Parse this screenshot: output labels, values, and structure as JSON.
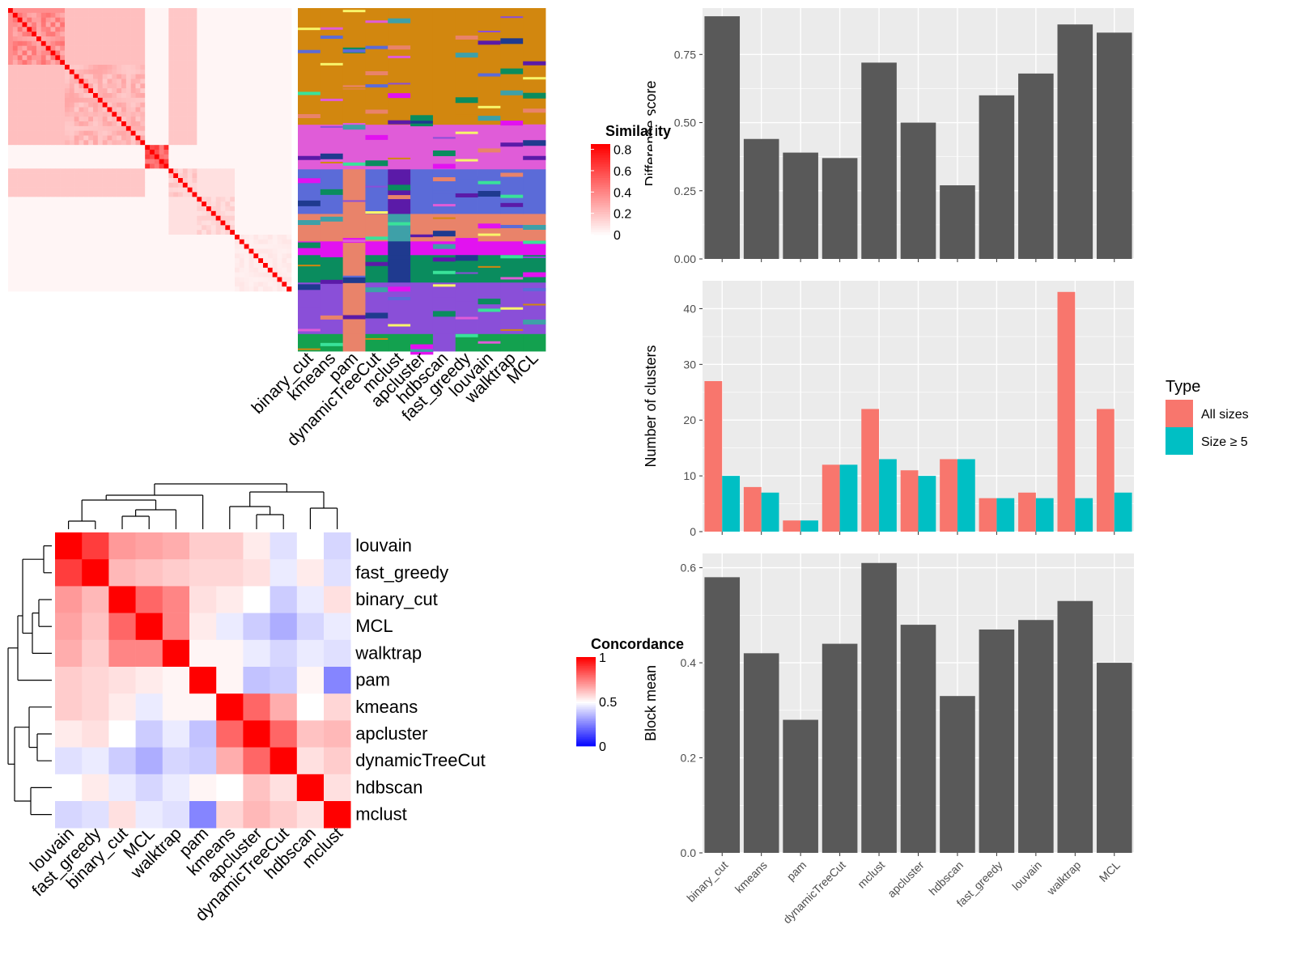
{
  "methods": [
    "binary_cut",
    "kmeans",
    "pam",
    "dynamicTreeCut",
    "mclust",
    "apcluster",
    "hdbscan",
    "fast_greedy",
    "louvain",
    "walktrap",
    "MCL"
  ],
  "similarity_legend": {
    "title": "Similarity",
    "ticks": [
      "0.8",
      "0.6",
      "0.4",
      "0.2",
      "0"
    ]
  },
  "concordance_legend": {
    "title": "Concordance",
    "ticks": [
      "1",
      "0.5",
      "0"
    ]
  },
  "colors": {
    "panel_bg": "#ebebeb",
    "bar_gray": "#595959",
    "all_sizes": "#f8766d",
    "size_ge5": "#00bfc4",
    "heat_high": "#ff0000",
    "heat_low": "#0000ff"
  },
  "chart_data": [
    {
      "type": "heatmap",
      "name": "similarity matrix with cluster label matrix",
      "column_labels": [
        "binary_cut",
        "kmeans",
        "pam",
        "dynamicTreeCut",
        "mclust",
        "apcluster",
        "hdbscan",
        "fast_greedy",
        "louvain",
        "walktrap",
        "MCL"
      ],
      "legend_title": "Similarity",
      "legend_ticks": [
        0.8,
        0.6,
        0.4,
        0.2,
        0
      ]
    },
    {
      "type": "heatmap",
      "name": "concordance",
      "row_labels": [
        "louvain",
        "fast_greedy",
        "binary_cut",
        "MCL",
        "walktrap",
        "pam",
        "kmeans",
        "apcluster",
        "dynamicTreeCut",
        "hdbscan",
        "mclust"
      ],
      "column_labels": [
        "louvain",
        "fast_greedy",
        "binary_cut",
        "MCL",
        "walktrap",
        "pam",
        "kmeans",
        "apcluster",
        "dynamicTreeCut",
        "hdbscan",
        "mclust"
      ],
      "legend_title": "Concordance",
      "legend_ticks": [
        1,
        0.5,
        0
      ],
      "values": [
        [
          1.0,
          0.88,
          0.7,
          0.68,
          0.66,
          0.6,
          0.6,
          0.54,
          0.44,
          0.5,
          0.42
        ],
        [
          0.88,
          1.0,
          0.64,
          0.62,
          0.6,
          0.58,
          0.58,
          0.56,
          0.46,
          0.54,
          0.44
        ],
        [
          0.7,
          0.64,
          1.0,
          0.8,
          0.74,
          0.56,
          0.54,
          0.5,
          0.4,
          0.46,
          0.56
        ],
        [
          0.68,
          0.62,
          0.8,
          1.0,
          0.74,
          0.54,
          0.46,
          0.4,
          0.34,
          0.42,
          0.46
        ],
        [
          0.66,
          0.6,
          0.74,
          0.74,
          1.0,
          0.52,
          0.52,
          0.46,
          0.42,
          0.46,
          0.44
        ],
        [
          0.6,
          0.58,
          0.56,
          0.54,
          0.52,
          1.0,
          0.52,
          0.38,
          0.4,
          0.52,
          0.26
        ],
        [
          0.6,
          0.58,
          0.54,
          0.46,
          0.52,
          0.52,
          1.0,
          0.8,
          0.66,
          0.5,
          0.58
        ],
        [
          0.54,
          0.56,
          0.5,
          0.4,
          0.46,
          0.38,
          0.8,
          1.0,
          0.8,
          0.62,
          0.64
        ],
        [
          0.44,
          0.46,
          0.4,
          0.34,
          0.42,
          0.4,
          0.66,
          0.8,
          1.0,
          0.56,
          0.6
        ],
        [
          0.5,
          0.54,
          0.46,
          0.42,
          0.46,
          0.52,
          0.5,
          0.62,
          0.56,
          1.0,
          0.56
        ],
        [
          0.42,
          0.44,
          0.56,
          0.46,
          0.44,
          0.26,
          0.58,
          0.64,
          0.6,
          0.56,
          1.0
        ]
      ]
    },
    {
      "type": "bar",
      "name": "difference score",
      "categories": [
        "binary_cut",
        "kmeans",
        "pam",
        "dynamicTreeCut",
        "mclust",
        "apcluster",
        "hdbscan",
        "fast_greedy",
        "louvain",
        "walktrap",
        "MCL"
      ],
      "values": [
        0.89,
        0.44,
        0.39,
        0.37,
        0.72,
        0.5,
        0.27,
        0.6,
        0.68,
        0.86,
        0.83
      ],
      "ylabel": "Difference score",
      "ylim": [
        0,
        0.92
      ],
      "yticks": [
        0.0,
        0.25,
        0.5,
        0.75
      ],
      "ytick_labels": [
        "0.00",
        "0.25",
        "0.50",
        "0.75"
      ]
    },
    {
      "type": "bar",
      "name": "number of clusters",
      "categories": [
        "binary_cut",
        "kmeans",
        "pam",
        "dynamicTreeCut",
        "mclust",
        "apcluster",
        "hdbscan",
        "fast_greedy",
        "louvain",
        "walktrap",
        "MCL"
      ],
      "series": [
        {
          "name": "All sizes",
          "values": [
            27,
            8,
            2,
            12,
            22,
            11,
            13,
            6,
            7,
            43,
            22
          ]
        },
        {
          "name": "Size ≥ 5",
          "values": [
            10,
            7,
            2,
            12,
            13,
            10,
            13,
            6,
            6,
            6,
            7
          ]
        }
      ],
      "ylabel": "Number of clusters",
      "ylim": [
        0,
        45
      ],
      "yticks": [
        0,
        10,
        20,
        30,
        40
      ],
      "ytick_labels": [
        "0",
        "10",
        "20",
        "30",
        "40"
      ],
      "legend_title": "Type",
      "legend_position": "right"
    },
    {
      "type": "bar",
      "name": "block mean",
      "categories": [
        "binary_cut",
        "kmeans",
        "pam",
        "dynamicTreeCut",
        "mclust",
        "apcluster",
        "hdbscan",
        "fast_greedy",
        "louvain",
        "walktrap",
        "MCL"
      ],
      "values": [
        0.58,
        0.42,
        0.28,
        0.44,
        0.61,
        0.48,
        0.33,
        0.47,
        0.49,
        0.53,
        0.4
      ],
      "ylabel": "Block mean",
      "ylim": [
        0,
        0.63
      ],
      "yticks": [
        0.0,
        0.2,
        0.4,
        0.6
      ],
      "ytick_labels": [
        "0.0",
        "0.2",
        "0.4",
        "0.6"
      ]
    }
  ]
}
